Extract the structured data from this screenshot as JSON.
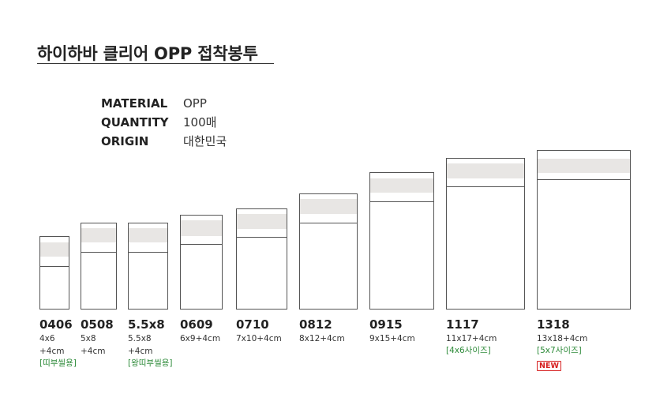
{
  "title": "하이하바 클리어 OPP 접착봉투",
  "specs": [
    {
      "label": "MATERIAL",
      "value": "OPP"
    },
    {
      "label": "QUANTITY",
      "value": "100매"
    },
    {
      "label": "ORIGIN",
      "value": "대한민국"
    }
  ],
  "products": [
    {
      "code": "0406",
      "dim1": "4x6",
      "dim2": "+4cm",
      "note": "[띠부씰용]"
    },
    {
      "code": "0508",
      "dim1": "5x8",
      "dim2": "+4cm"
    },
    {
      "code": "5.5x8",
      "dim1": "5.5x8",
      "dim2": "+4cm",
      "note": "[왕띠부씰용]"
    },
    {
      "code": "0609",
      "dim1": "6x9+4cm"
    },
    {
      "code": "0710",
      "dim1": "7x10+4cm"
    },
    {
      "code": "0812",
      "dim1": "8x12+4cm"
    },
    {
      "code": "0915",
      "dim1": "9x15+4cm"
    },
    {
      "code": "1117",
      "dim1": "11x17+4cm",
      "note": "[4x6사이즈]"
    },
    {
      "code": "1318",
      "dim1": "13x18+4cm",
      "note": "[5x7사이즈]",
      "badge": "NEW"
    }
  ]
}
